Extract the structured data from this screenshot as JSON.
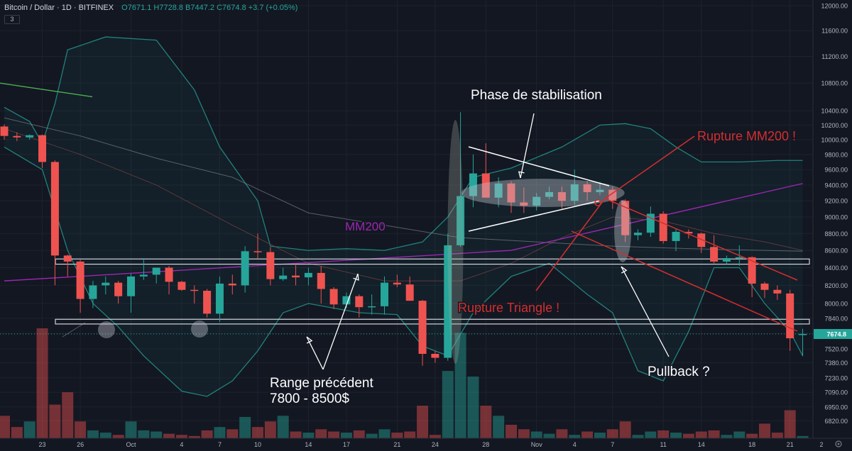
{
  "header": {
    "symbol": "Bitcoin / Dollar",
    "interval": "1D",
    "exchange": "BITFINEX",
    "ohlc": "O7671.1 H7728.8 B7447.2 C7674.8 +3.7 (+0.05%)",
    "indicator_badge": "3"
  },
  "colors": {
    "background": "#131722",
    "up": "#26a69a",
    "down": "#ef5350",
    "ma200": "#9c27b0",
    "bollinger": "#26a69a",
    "annotation_red": "#d32f2f",
    "annotation_white": "#ffffff"
  },
  "annotations": {
    "stabilisation": "Phase de stabilisation",
    "rupture_mm200": "Rupture MM200 !",
    "mm200": "MM200",
    "rupture_triangle": "Rupture Triangle !",
    "pullback": "Pullback ?",
    "range_line1": "Range précédent",
    "range_line2": "7800 - 8500$"
  },
  "price_tag": "7674.8",
  "chart_data": {
    "type": "candlestick",
    "title": "",
    "xlabel": "",
    "ylabel": "",
    "y_scale": "log",
    "ylim": [
      6750,
      12000
    ],
    "y_ticks": [
      6820,
      6950,
      7090,
      7230,
      7380,
      7520,
      7680,
      7840,
      8000,
      8200,
      8400,
      8600,
      8800,
      9000,
      9200,
      9400,
      9600,
      9800,
      10000,
      10200,
      10400,
      10800,
      11200,
      11600,
      12000
    ],
    "x_tick_labels": [
      "23",
      "26",
      "Oct",
      "4",
      "7",
      "10",
      "14",
      "17",
      "21",
      "24",
      "28",
      "Nov",
      "4",
      "7",
      "11",
      "14",
      "18",
      "21",
      "2"
    ],
    "grid": true,
    "legend": "top-left",
    "candles": [
      {
        "date": "2019-09-20",
        "o": 10180,
        "h": 10210,
        "l": 10000,
        "c": 10050
      },
      {
        "date": "2019-09-21",
        "o": 10050,
        "h": 10100,
        "l": 9980,
        "c": 10030
      },
      {
        "date": "2019-09-22",
        "o": 10030,
        "h": 10070,
        "l": 10000,
        "c": 10060
      },
      {
        "date": "2019-09-23",
        "o": 10060,
        "h": 10070,
        "l": 9620,
        "c": 9700
      },
      {
        "date": "2019-09-24",
        "o": 9700,
        "h": 9720,
        "l": 8200,
        "c": 8540
      },
      {
        "date": "2019-09-25",
        "o": 8540,
        "h": 8550,
        "l": 8300,
        "c": 8470
      },
      {
        "date": "2019-09-26",
        "o": 8470,
        "h": 8490,
        "l": 7900,
        "c": 8050
      },
      {
        "date": "2019-09-27",
        "o": 8050,
        "h": 8250,
        "l": 7950,
        "c": 8200
      },
      {
        "date": "2019-09-28",
        "o": 8200,
        "h": 8300,
        "l": 8100,
        "c": 8230
      },
      {
        "date": "2019-09-29",
        "o": 8230,
        "h": 8250,
        "l": 8000,
        "c": 8080
      },
      {
        "date": "2019-09-30",
        "o": 8080,
        "h": 8330,
        "l": 7900,
        "c": 8300
      },
      {
        "date": "2019-10-01",
        "o": 8300,
        "h": 8510,
        "l": 8260,
        "c": 8320
      },
      {
        "date": "2019-10-02",
        "o": 8320,
        "h": 8400,
        "l": 8220,
        "c": 8400
      },
      {
        "date": "2019-10-03",
        "o": 8400,
        "h": 8420,
        "l": 8100,
        "c": 8240
      },
      {
        "date": "2019-10-04",
        "o": 8240,
        "h": 8250,
        "l": 8140,
        "c": 8150
      },
      {
        "date": "2019-10-05",
        "o": 8150,
        "h": 8200,
        "l": 8000,
        "c": 8140
      },
      {
        "date": "2019-10-06",
        "o": 8140,
        "h": 8160,
        "l": 7850,
        "c": 7890
      },
      {
        "date": "2019-10-07",
        "o": 7890,
        "h": 8300,
        "l": 7800,
        "c": 8220
      },
      {
        "date": "2019-10-08",
        "o": 8220,
        "h": 8320,
        "l": 8100,
        "c": 8200
      },
      {
        "date": "2019-10-09",
        "o": 8200,
        "h": 8650,
        "l": 8120,
        "c": 8590
      },
      {
        "date": "2019-10-10",
        "o": 8590,
        "h": 8800,
        "l": 8500,
        "c": 8580
      },
      {
        "date": "2019-10-11",
        "o": 8580,
        "h": 8640,
        "l": 8200,
        "c": 8270
      },
      {
        "date": "2019-10-12",
        "o": 8270,
        "h": 8400,
        "l": 8250,
        "c": 8310
      },
      {
        "date": "2019-10-13",
        "o": 8310,
        "h": 8450,
        "l": 8200,
        "c": 8290
      },
      {
        "date": "2019-10-14",
        "o": 8290,
        "h": 8400,
        "l": 8200,
        "c": 8340
      },
      {
        "date": "2019-10-15",
        "o": 8340,
        "h": 8420,
        "l": 8000,
        "c": 8160
      },
      {
        "date": "2019-10-16",
        "o": 8160,
        "h": 8180,
        "l": 7940,
        "c": 7990
      },
      {
        "date": "2019-10-17",
        "o": 7990,
        "h": 8120,
        "l": 7950,
        "c": 8080
      },
      {
        "date": "2019-10-18",
        "o": 8080,
        "h": 8100,
        "l": 7850,
        "c": 7960
      },
      {
        "date": "2019-10-19",
        "o": 7960,
        "h": 8100,
        "l": 7880,
        "c": 7970
      },
      {
        "date": "2019-10-20",
        "o": 7970,
        "h": 8300,
        "l": 7880,
        "c": 8230
      },
      {
        "date": "2019-10-21",
        "o": 8230,
        "h": 8320,
        "l": 8180,
        "c": 8210
      },
      {
        "date": "2019-10-22",
        "o": 8210,
        "h": 8300,
        "l": 8030,
        "c": 8030
      },
      {
        "date": "2019-10-23",
        "o": 8030,
        "h": 8040,
        "l": 7350,
        "c": 7470
      },
      {
        "date": "2019-10-24",
        "o": 7470,
        "h": 7500,
        "l": 7380,
        "c": 7430
      },
      {
        "date": "2019-10-25",
        "o": 7430,
        "h": 8800,
        "l": 7400,
        "c": 8660
      },
      {
        "date": "2019-10-26",
        "o": 8660,
        "h": 10380,
        "l": 8640,
        "c": 9260
      },
      {
        "date": "2019-10-27",
        "o": 9260,
        "h": 9800,
        "l": 9120,
        "c": 9550
      },
      {
        "date": "2019-10-28",
        "o": 9550,
        "h": 9950,
        "l": 9250,
        "c": 9240
      },
      {
        "date": "2019-10-29",
        "o": 9240,
        "h": 9500,
        "l": 9120,
        "c": 9420
      },
      {
        "date": "2019-10-30",
        "o": 9420,
        "h": 9450,
        "l": 9050,
        "c": 9180
      },
      {
        "date": "2019-10-31",
        "o": 9180,
        "h": 9370,
        "l": 9050,
        "c": 9140
      },
      {
        "date": "2019-11-01",
        "o": 9140,
        "h": 9300,
        "l": 9080,
        "c": 9250
      },
      {
        "date": "2019-11-02",
        "o": 9250,
        "h": 9380,
        "l": 9220,
        "c": 9310
      },
      {
        "date": "2019-11-03",
        "o": 9310,
        "h": 9380,
        "l": 9100,
        "c": 9200
      },
      {
        "date": "2019-11-04",
        "o": 9200,
        "h": 9600,
        "l": 9150,
        "c": 9410
      },
      {
        "date": "2019-11-05",
        "o": 9410,
        "h": 9450,
        "l": 9200,
        "c": 9310
      },
      {
        "date": "2019-11-06",
        "o": 9310,
        "h": 9440,
        "l": 9270,
        "c": 9340
      },
      {
        "date": "2019-11-07",
        "o": 9340,
        "h": 9380,
        "l": 9100,
        "c": 9200
      },
      {
        "date": "2019-11-08",
        "o": 9200,
        "h": 9220,
        "l": 8700,
        "c": 8780
      },
      {
        "date": "2019-11-09",
        "o": 8780,
        "h": 8850,
        "l": 8720,
        "c": 8810
      },
      {
        "date": "2019-11-10",
        "o": 8810,
        "h": 9130,
        "l": 8760,
        "c": 9040
      },
      {
        "date": "2019-11-11",
        "o": 9040,
        "h": 9070,
        "l": 8680,
        "c": 8710
      },
      {
        "date": "2019-11-12",
        "o": 8710,
        "h": 8850,
        "l": 8590,
        "c": 8820
      },
      {
        "date": "2019-11-13",
        "o": 8820,
        "h": 8850,
        "l": 8740,
        "c": 8800
      },
      {
        "date": "2019-11-14",
        "o": 8800,
        "h": 8810,
        "l": 8570,
        "c": 8640
      },
      {
        "date": "2019-11-15",
        "o": 8640,
        "h": 8780,
        "l": 8450,
        "c": 8470
      },
      {
        "date": "2019-11-16",
        "o": 8470,
        "h": 8540,
        "l": 8440,
        "c": 8510
      },
      {
        "date": "2019-11-17",
        "o": 8510,
        "h": 8660,
        "l": 8420,
        "c": 8520
      },
      {
        "date": "2019-11-18",
        "o": 8520,
        "h": 8530,
        "l": 8070,
        "c": 8220
      },
      {
        "date": "2019-11-19",
        "o": 8220,
        "h": 8240,
        "l": 8060,
        "c": 8150
      },
      {
        "date": "2019-11-20",
        "o": 8150,
        "h": 8200,
        "l": 8040,
        "c": 8110
      },
      {
        "date": "2019-11-21",
        "o": 8110,
        "h": 8150,
        "l": 7500,
        "c": 7630
      },
      {
        "date": "2019-11-22",
        "o": 7671.1,
        "h": 7728.8,
        "l": 7447.2,
        "c": 7674.8
      }
    ],
    "volume": [
      7000,
      6900,
      6950,
      7780,
      7100,
      7210,
      6950,
      6870,
      6850,
      6830,
      6950,
      6870,
      6860,
      6840,
      6830,
      6820,
      6870,
      6900,
      6880,
      6990,
      6900,
      6950,
      7000,
      6860,
      6850,
      6880,
      6860,
      6850,
      6870,
      6840,
      6880,
      6850,
      6860,
      7090,
      6830,
      7400,
      7740,
      7350,
      7090,
      7000,
      6920,
      6880,
      6860,
      6840,
      6880,
      6830,
      6860,
      6850,
      6880,
      6950,
      6830,
      6860,
      6870,
      6850,
      6840,
      6860,
      6870,
      6830,
      6860,
      6840,
      6930,
      6850,
      7050,
      6820
    ],
    "series": [
      {
        "name": "MM200",
        "values": [
          [
            0,
            8250
          ],
          [
            40,
            8600
          ],
          [
            63,
            9420
          ]
        ]
      }
    ],
    "levels": [
      {
        "y1": 8440,
        "y2": 8500
      },
      {
        "y1": 7780,
        "y2": 7830
      }
    ]
  }
}
